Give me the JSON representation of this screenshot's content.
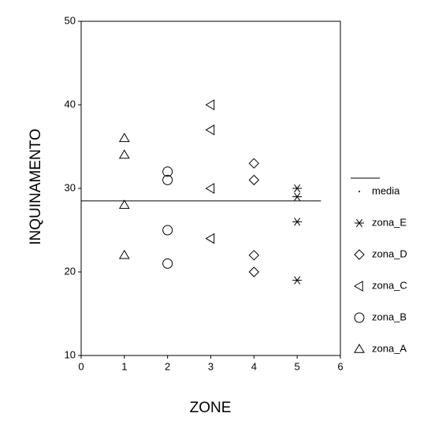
{
  "chart_data": {
    "type": "scatter",
    "x_label": "ZONE",
    "y_label": "INQUINAMENTO",
    "xlim": [
      0,
      6
    ],
    "xticks": [
      0,
      1,
      2,
      3,
      4,
      5,
      6
    ],
    "ylim": [
      10,
      50
    ],
    "yticks": [
      10,
      20,
      30,
      40,
      50
    ],
    "series": [
      {
        "name": "media",
        "color": "#000000",
        "marker": "line",
        "x": [
          0,
          5.55
        ],
        "values": [
          28.5,
          28.5
        ]
      },
      {
        "name": "zona_E",
        "color": "#000000",
        "marker": "asterisk",
        "x": [
          5,
          5,
          5,
          5
        ],
        "values": [
          30,
          29,
          26,
          19
        ]
      },
      {
        "name": "zona_D",
        "color": "#000000",
        "marker": "diamond",
        "x": [
          4,
          4,
          4,
          4
        ],
        "values": [
          33,
          31,
          22,
          20
        ]
      },
      {
        "name": "zona_C",
        "color": "#000000",
        "marker": "triangle-left",
        "x": [
          3,
          3,
          3,
          3
        ],
        "values": [
          40,
          37,
          30,
          24
        ]
      },
      {
        "name": "zona_B",
        "color": "#000000",
        "marker": "circle",
        "x": [
          2,
          2,
          2,
          2
        ],
        "values": [
          32,
          31,
          25,
          21
        ]
      },
      {
        "name": "zona_A",
        "color": "#000000",
        "marker": "triangle-up",
        "x": [
          1,
          1,
          1,
          1
        ],
        "values": [
          36,
          34,
          28,
          22
        ]
      }
    ]
  }
}
